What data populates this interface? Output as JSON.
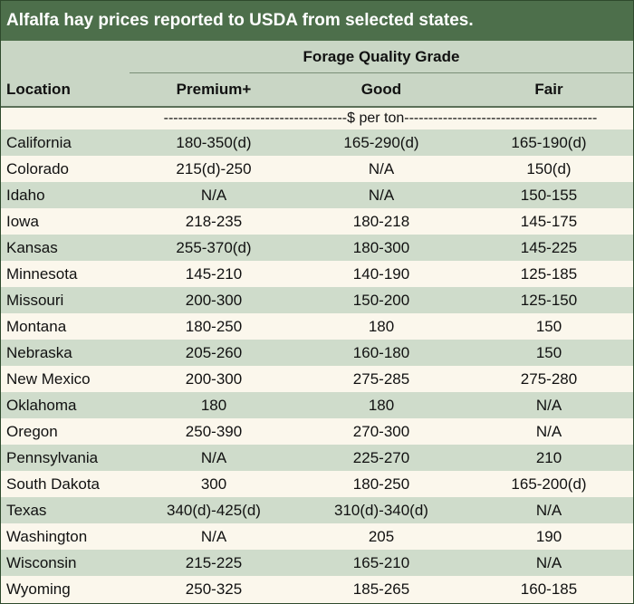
{
  "title": "Alfalfa hay prices reported to USDA from selected states.",
  "header": {
    "group_label": "Forage Quality Grade",
    "location": "Location",
    "premium": "Premium+",
    "good": "Good",
    "fair": "Fair"
  },
  "units": "--------------------------------------$ per ton----------------------------------------",
  "rows": [
    {
      "location": "California",
      "premium": "180-350(d)",
      "good": "165-290(d)",
      "fair": "165-190(d)"
    },
    {
      "location": "Colorado",
      "premium": "215(d)-250",
      "good": "N/A",
      "fair": "150(d)"
    },
    {
      "location": "Idaho",
      "premium": "N/A",
      "good": "N/A",
      "fair": "150-155"
    },
    {
      "location": "Iowa",
      "premium": "218-235",
      "good": "180-218",
      "fair": "145-175"
    },
    {
      "location": "Kansas",
      "premium": "255-370(d)",
      "good": "180-300",
      "fair": "145-225"
    },
    {
      "location": "Minnesota",
      "premium": "145-210",
      "good": "140-190",
      "fair": "125-185"
    },
    {
      "location": "Missouri",
      "premium": "200-300",
      "good": "150-200",
      "fair": "125-150"
    },
    {
      "location": "Montana",
      "premium": "180-250",
      "good": "180",
      "fair": "150"
    },
    {
      "location": "Nebraska",
      "premium": "205-260",
      "good": "160-180",
      "fair": "150"
    },
    {
      "location": "New Mexico",
      "premium": "200-300",
      "good": "275-285",
      "fair": "275-280"
    },
    {
      "location": "Oklahoma",
      "premium": "180",
      "good": "180",
      "fair": "N/A"
    },
    {
      "location": "Oregon",
      "premium": "250-390",
      "good": "270-300",
      "fair": "N/A"
    },
    {
      "location": "Pennsylvania",
      "premium": "N/A",
      "good": "225-270",
      "fair": "210"
    },
    {
      "location": "South Dakota",
      "premium": "300",
      "good": "180-250",
      "fair": "165-200(d)"
    },
    {
      "location": "Texas",
      "premium": "340(d)-425(d)",
      "good": "310(d)-340(d)",
      "fair": "N/A"
    },
    {
      "location": "Washington",
      "premium": "N/A",
      "good": "205",
      "fair": "190"
    },
    {
      "location": "Wisconsin",
      "premium": "215-225",
      "good": "165-210",
      "fair": "N/A"
    },
    {
      "location": "Wyoming",
      "premium": "250-325",
      "good": "185-265",
      "fair": "160-185"
    }
  ]
}
